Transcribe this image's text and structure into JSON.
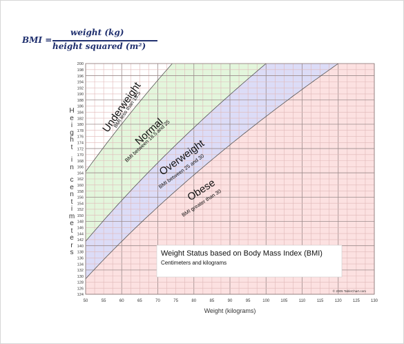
{
  "formula": {
    "lhs": "BMI =",
    "numerator": "weight (kg)",
    "denominator": "height squared (m²)"
  },
  "colors": {
    "underweight": "#ffffff",
    "normal": "#e3f6dc",
    "overweight": "#dcdcf7",
    "obese": "#fce1e1",
    "grid_minor": "#e0b8b8",
    "grid_major": "#9a8a8a",
    "boundary": "#555555"
  },
  "chart_data": {
    "type": "area",
    "title": "Weight Status based on Body Mass Index (BMI)",
    "subtitle": "Centimeters and kilograms",
    "xlabel": "Weight (kilograms)",
    "ylabel": "Height in centimeters",
    "xlim": [
      50,
      130
    ],
    "ylim": [
      124,
      200
    ],
    "x_ticks": [
      50,
      55,
      60,
      65,
      70,
      75,
      80,
      85,
      90,
      95,
      100,
      105,
      110,
      115,
      120,
      125,
      130
    ],
    "y_ticks": [
      124,
      126,
      128,
      130,
      132,
      134,
      136,
      138,
      140,
      142,
      144,
      146,
      148,
      150,
      152,
      154,
      156,
      158,
      160,
      162,
      164,
      166,
      168,
      170,
      172,
      174,
      176,
      178,
      180,
      182,
      184,
      186,
      188,
      190,
      192,
      194,
      196,
      198,
      200
    ],
    "boundaries": [
      {
        "bmi": 18.5,
        "x": [
          50,
          74
        ],
        "y": [
          164.4,
          200.0
        ]
      },
      {
        "bmi": 25,
        "x": [
          50,
          100
        ],
        "y": [
          141.4,
          200.0
        ]
      },
      {
        "bmi": 30,
        "x": [
          50,
          120
        ],
        "y": [
          129.1,
          200.0
        ]
      }
    ],
    "regions": [
      {
        "name": "Underweight",
        "sublabel": "BMI less than 18.5",
        "color_key": "underweight"
      },
      {
        "name": "Normal",
        "sublabel": "BMI between 18.5 and 25",
        "color_key": "normal"
      },
      {
        "name": "Overweight",
        "sublabel": "BMI between 25 and 30",
        "color_key": "overweight"
      },
      {
        "name": "Obese",
        "sublabel": "BMI greater than 30",
        "color_key": "obese"
      }
    ],
    "copyright": "© 2005 TableChart.com",
    "grid": true
  }
}
